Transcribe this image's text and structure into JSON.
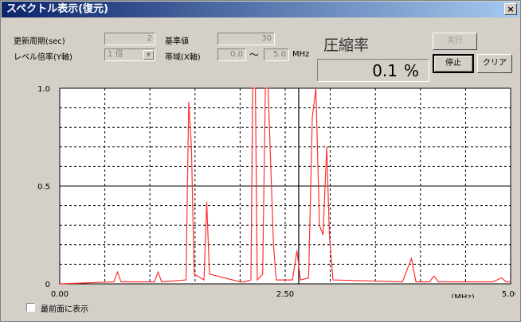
{
  "window": {
    "title": "スペクトル表示(復元)",
    "close_label": "×"
  },
  "controls": {
    "update_period_label": "更新周期(sec)",
    "update_period_value": "2",
    "reference_label": "基準値",
    "reference_value": "30",
    "level_label": "レベル倍率(Y軸)",
    "level_value": "1 倍",
    "band_label": "帯域(X軸)",
    "band_from": "0.0",
    "band_tilde": "〜",
    "band_to": "5.0",
    "band_unit": "MHz"
  },
  "compression": {
    "title": "圧縮率",
    "value": "0.1",
    "unit": "%"
  },
  "buttons": {
    "run": "実行",
    "stop": "停止",
    "clear": "クリア"
  },
  "footer": {
    "topmost_label": "最前面に表示"
  },
  "colors": {
    "trace": "#ff3030",
    "marker": "#000000",
    "grid": "#000000",
    "plot_bg": "#ffffff"
  },
  "chart_data": {
    "type": "line",
    "xlim": [
      0,
      5
    ],
    "ylim": [
      0,
      1
    ],
    "x_ticks": [
      "0.00",
      "2.50",
      "5.00"
    ],
    "y_ticks": [
      "0",
      "0.5",
      "1.0"
    ],
    "x_unit": "(MHz)",
    "marker_x": 2.65,
    "series": [
      {
        "points": [
          [
            0.0,
            0.0
          ],
          [
            0.6,
            0.01
          ],
          [
            0.64,
            0.06
          ],
          [
            0.68,
            0.01
          ],
          [
            1.05,
            0.01
          ],
          [
            1.09,
            0.06
          ],
          [
            1.13,
            0.01
          ],
          [
            1.4,
            0.02
          ],
          [
            1.43,
            0.93
          ],
          [
            1.46,
            0.7
          ],
          [
            1.49,
            0.05
          ],
          [
            1.6,
            0.02
          ],
          [
            1.63,
            0.42
          ],
          [
            1.66,
            0.05
          ],
          [
            2.0,
            0.01
          ],
          [
            2.05,
            0.01
          ],
          [
            2.12,
            0.02
          ],
          [
            2.14,
            1.0
          ],
          [
            2.17,
            1.0
          ],
          [
            2.19,
            0.02
          ],
          [
            2.25,
            0.05
          ],
          [
            2.28,
            1.0
          ],
          [
            2.31,
            1.0
          ],
          [
            2.34,
            0.6
          ],
          [
            2.37,
            0.2
          ],
          [
            2.4,
            0.02
          ],
          [
            2.58,
            0.02
          ],
          [
            2.63,
            0.17
          ],
          [
            2.67,
            0.02
          ],
          [
            2.76,
            0.03
          ],
          [
            2.8,
            0.85
          ],
          [
            2.84,
            1.0
          ],
          [
            2.88,
            0.3
          ],
          [
            2.92,
            0.25
          ],
          [
            2.96,
            0.7
          ],
          [
            2.99,
            0.25
          ],
          [
            3.03,
            0.02
          ],
          [
            3.8,
            0.01
          ],
          [
            3.9,
            0.13
          ],
          [
            3.95,
            0.01
          ],
          [
            4.1,
            0.01
          ],
          [
            4.15,
            0.04
          ],
          [
            4.2,
            0.01
          ],
          [
            4.8,
            0.01
          ],
          [
            4.9,
            0.03
          ],
          [
            4.95,
            0.01
          ],
          [
            5.0,
            0.01
          ]
        ]
      }
    ]
  }
}
